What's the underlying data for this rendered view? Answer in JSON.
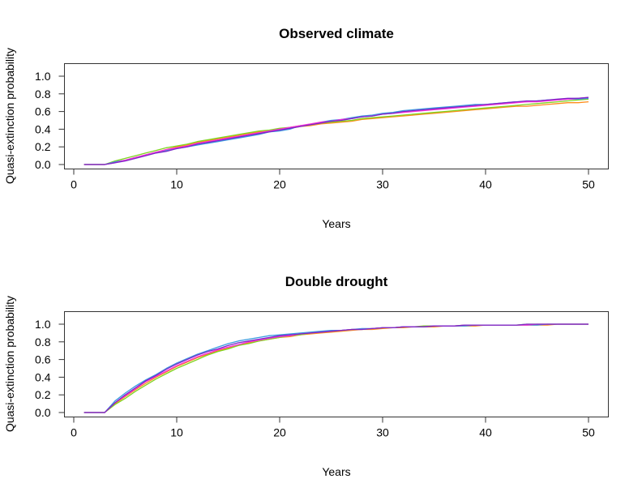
{
  "figure": {
    "background": "#ffffff"
  },
  "chart_data": [
    {
      "type": "line",
      "title": "Observed climate",
      "xlabel": "Years",
      "ylabel": "Quasi-extinction probability",
      "xlim": [
        1,
        50
      ],
      "ylim": [
        0,
        1.0
      ],
      "x_ticks": [
        0,
        10,
        20,
        30,
        40,
        50
      ],
      "y_ticks": [
        0.0,
        0.2,
        0.4,
        0.6,
        0.8,
        1.0
      ],
      "x_tick_labels": [
        "0",
        "10",
        "20",
        "30",
        "40",
        "50"
      ],
      "y_tick_labels": [
        "0.0",
        "0.2",
        "0.4",
        "0.6",
        "0.8",
        "1.0"
      ],
      "grid": false,
      "x": [
        1,
        2,
        3,
        4,
        5,
        6,
        7,
        8,
        9,
        10,
        11,
        12,
        13,
        14,
        15,
        16,
        17,
        18,
        19,
        20,
        21,
        22,
        23,
        24,
        25,
        26,
        27,
        28,
        29,
        30,
        31,
        32,
        33,
        34,
        35,
        36,
        37,
        38,
        39,
        40,
        41,
        42,
        43,
        44,
        45,
        46,
        47,
        48,
        49,
        50
      ],
      "series": [
        {
          "color": "#ff8c1a",
          "values": [
            0,
            0,
            0,
            0.03,
            0.05,
            0.08,
            0.11,
            0.14,
            0.17,
            0.2,
            0.22,
            0.25,
            0.27,
            0.29,
            0.31,
            0.33,
            0.35,
            0.37,
            0.38,
            0.4,
            0.41,
            0.43,
            0.44,
            0.46,
            0.47,
            0.48,
            0.49,
            0.51,
            0.52,
            0.53,
            0.54,
            0.55,
            0.56,
            0.57,
            0.58,
            0.59,
            0.6,
            0.61,
            0.62,
            0.63,
            0.64,
            0.65,
            0.66,
            0.66,
            0.67,
            0.68,
            0.69,
            0.7,
            0.7,
            0.71
          ]
        },
        {
          "color": "#7fd321",
          "values": [
            0,
            0,
            0,
            0.04,
            0.07,
            0.1,
            0.13,
            0.16,
            0.19,
            0.21,
            0.23,
            0.26,
            0.28,
            0.3,
            0.32,
            0.34,
            0.36,
            0.38,
            0.39,
            0.41,
            0.42,
            0.44,
            0.45,
            0.47,
            0.48,
            0.49,
            0.5,
            0.52,
            0.53,
            0.54,
            0.55,
            0.56,
            0.57,
            0.58,
            0.59,
            0.6,
            0.61,
            0.62,
            0.63,
            0.64,
            0.65,
            0.66,
            0.67,
            0.68,
            0.69,
            0.7,
            0.71,
            0.72,
            0.73,
            0.74
          ]
        },
        {
          "color": "#3b9be0",
          "values": [
            0,
            0,
            0,
            0.03,
            0.05,
            0.08,
            0.11,
            0.14,
            0.16,
            0.18,
            0.2,
            0.22,
            0.24,
            0.26,
            0.28,
            0.3,
            0.32,
            0.34,
            0.37,
            0.38,
            0.4,
            0.44,
            0.45,
            0.48,
            0.5,
            0.51,
            0.53,
            0.55,
            0.56,
            0.58,
            0.59,
            0.61,
            0.62,
            0.63,
            0.64,
            0.65,
            0.66,
            0.67,
            0.68,
            0.68,
            0.69,
            0.7,
            0.71,
            0.71,
            0.72,
            0.73,
            0.73,
            0.74,
            0.74,
            0.75
          ]
        },
        {
          "color": "#ff2fd8",
          "values": [
            0,
            0,
            0,
            0.02,
            0.05,
            0.08,
            0.11,
            0.14,
            0.17,
            0.19,
            0.21,
            0.24,
            0.26,
            0.28,
            0.3,
            0.32,
            0.34,
            0.36,
            0.38,
            0.4,
            0.42,
            0.44,
            0.46,
            0.48,
            0.49,
            0.51,
            0.52,
            0.54,
            0.55,
            0.57,
            0.58,
            0.59,
            0.6,
            0.61,
            0.62,
            0.63,
            0.64,
            0.65,
            0.66,
            0.67,
            0.68,
            0.69,
            0.7,
            0.71,
            0.71,
            0.72,
            0.73,
            0.74,
            0.75,
            0.76
          ]
        },
        {
          "color": "#7b28c8",
          "values": [
            0,
            0,
            0,
            0.02,
            0.04,
            0.07,
            0.1,
            0.13,
            0.15,
            0.18,
            0.2,
            0.23,
            0.25,
            0.27,
            0.29,
            0.31,
            0.33,
            0.35,
            0.37,
            0.39,
            0.41,
            0.43,
            0.45,
            0.47,
            0.49,
            0.5,
            0.52,
            0.54,
            0.55,
            0.57,
            0.58,
            0.6,
            0.61,
            0.62,
            0.63,
            0.64,
            0.65,
            0.66,
            0.67,
            0.68,
            0.69,
            0.7,
            0.71,
            0.72,
            0.72,
            0.73,
            0.74,
            0.75,
            0.75,
            0.76
          ]
        }
      ]
    },
    {
      "type": "line",
      "title": "Double drought",
      "xlabel": "Years",
      "ylabel": "Quasi-extinction probability",
      "xlim": [
        1,
        50
      ],
      "ylim": [
        0,
        1.0
      ],
      "x_ticks": [
        0,
        10,
        20,
        30,
        40,
        50
      ],
      "y_ticks": [
        0.0,
        0.2,
        0.4,
        0.6,
        0.8,
        1.0
      ],
      "x_tick_labels": [
        "0",
        "10",
        "20",
        "30",
        "40",
        "50"
      ],
      "y_tick_labels": [
        "0.0",
        "0.2",
        "0.4",
        "0.6",
        "0.8",
        "1.0"
      ],
      "grid": false,
      "x": [
        1,
        2,
        3,
        4,
        5,
        6,
        7,
        8,
        9,
        10,
        11,
        12,
        13,
        14,
        15,
        16,
        17,
        18,
        19,
        20,
        21,
        22,
        23,
        24,
        25,
        26,
        27,
        28,
        29,
        30,
        31,
        32,
        33,
        34,
        35,
        36,
        37,
        38,
        39,
        40,
        41,
        42,
        43,
        44,
        45,
        46,
        47,
        48,
        49,
        50
      ],
      "series": [
        {
          "color": "#ff8c1a",
          "values": [
            0,
            0,
            0,
            0.1,
            0.18,
            0.26,
            0.33,
            0.4,
            0.46,
            0.52,
            0.57,
            0.62,
            0.66,
            0.7,
            0.73,
            0.76,
            0.79,
            0.81,
            0.83,
            0.85,
            0.86,
            0.88,
            0.89,
            0.9,
            0.91,
            0.92,
            0.93,
            0.94,
            0.94,
            0.95,
            0.96,
            0.96,
            0.97,
            0.97,
            0.97,
            0.98,
            0.98,
            0.98,
            0.98,
            0.99,
            0.99,
            0.99,
            0.99,
            0.99,
            0.99,
            0.99,
            1.0,
            1.0,
            1.0,
            1.0
          ]
        },
        {
          "color": "#7fd321",
          "values": [
            0,
            0,
            0,
            0.09,
            0.16,
            0.24,
            0.31,
            0.38,
            0.44,
            0.5,
            0.55,
            0.6,
            0.65,
            0.69,
            0.72,
            0.76,
            0.78,
            0.81,
            0.83,
            0.85,
            0.87,
            0.88,
            0.9,
            0.91,
            0.92,
            0.93,
            0.94,
            0.94,
            0.95,
            0.96,
            0.96,
            0.97,
            0.97,
            0.98,
            0.98,
            0.98,
            0.98,
            0.99,
            0.99,
            0.99,
            0.99,
            0.99,
            0.99,
            1.0,
            1.0,
            1.0,
            1.0,
            1.0,
            1.0,
            1.0
          ]
        },
        {
          "color": "#3b9be0",
          "values": [
            0,
            0,
            0,
            0.13,
            0.22,
            0.3,
            0.37,
            0.43,
            0.5,
            0.56,
            0.61,
            0.66,
            0.7,
            0.74,
            0.78,
            0.81,
            0.83,
            0.85,
            0.87,
            0.88,
            0.89,
            0.9,
            0.91,
            0.92,
            0.93,
            0.93,
            0.94,
            0.95,
            0.95,
            0.96,
            0.96,
            0.97,
            0.97,
            0.97,
            0.98,
            0.98,
            0.98,
            0.98,
            0.99,
            0.99,
            0.99,
            0.99,
            0.99,
            0.99,
            0.99,
            1.0,
            1.0,
            1.0,
            1.0,
            1.0
          ]
        },
        {
          "color": "#ff2fd8",
          "values": [
            0,
            0,
            0,
            0.11,
            0.19,
            0.27,
            0.35,
            0.41,
            0.47,
            0.53,
            0.58,
            0.63,
            0.67,
            0.71,
            0.74,
            0.77,
            0.8,
            0.82,
            0.84,
            0.86,
            0.87,
            0.89,
            0.9,
            0.91,
            0.92,
            0.93,
            0.94,
            0.94,
            0.95,
            0.96,
            0.96,
            0.97,
            0.97,
            0.97,
            0.98,
            0.98,
            0.98,
            0.99,
            0.99,
            0.99,
            0.99,
            0.99,
            0.99,
            0.99,
            1.0,
            1.0,
            1.0,
            1.0,
            1.0,
            1.0
          ]
        },
        {
          "color": "#7b28c8",
          "values": [
            0,
            0,
            0,
            0.11,
            0.2,
            0.28,
            0.36,
            0.42,
            0.49,
            0.55,
            0.6,
            0.65,
            0.69,
            0.72,
            0.76,
            0.79,
            0.81,
            0.83,
            0.85,
            0.87,
            0.88,
            0.89,
            0.9,
            0.91,
            0.92,
            0.93,
            0.94,
            0.94,
            0.95,
            0.96,
            0.96,
            0.97,
            0.97,
            0.97,
            0.98,
            0.98,
            0.98,
            0.99,
            0.99,
            0.99,
            0.99,
            0.99,
            0.99,
            1.0,
            1.0,
            1.0,
            1.0,
            1.0,
            1.0,
            1.0
          ]
        }
      ]
    }
  ]
}
